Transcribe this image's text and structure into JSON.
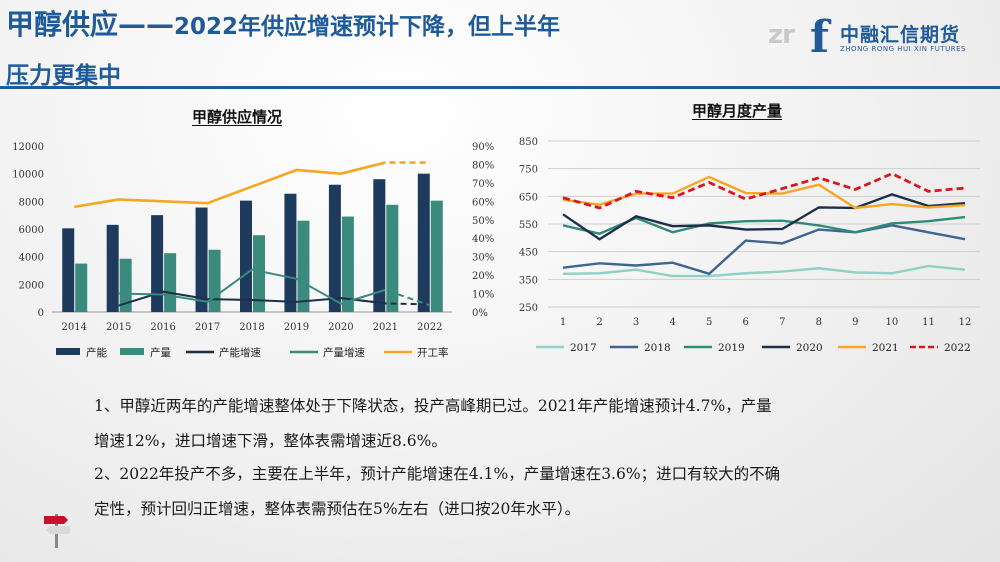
{
  "header": {
    "title_big": "甲醇供应——",
    "title_rest": "2022年供应增速预计下降，但上半年",
    "title_line2": "压力更集中"
  },
  "logo": {
    "mark": "zr",
    "mark_f": "f",
    "cn": "中融汇信期货",
    "en": "ZHONG RONG HUI XIN FUTURES"
  },
  "colors": {
    "title_blue": "#1f5a9a",
    "capacity": "#1e3a5c",
    "output": "#3a8a7e",
    "capacity_growth": "#1e2f4a",
    "output_growth": "#3a8a7e",
    "utilization": "#f5a623",
    "y2017": "#8fd1c4",
    "y2018": "#3d6590",
    "y2019": "#2f8a78",
    "y2020": "#1c2f4a",
    "y2021": "#f5a623",
    "y2022": "#d9171f"
  },
  "chart_data": [
    {
      "type": "bar",
      "title": "甲醇供应情况",
      "categories": [
        "2014",
        "2015",
        "2016",
        "2017",
        "2018",
        "2019",
        "2020",
        "2021",
        "2022"
      ],
      "ylim": [
        0,
        12000
      ],
      "yticks": [
        "0",
        "2000",
        "4000",
        "6000",
        "8000",
        "10000",
        "12000"
      ],
      "y2lim": [
        0,
        90
      ],
      "y2ticks": [
        "0%",
        "10%",
        "20%",
        "30%",
        "40%",
        "50%",
        "60%",
        "70%",
        "80%",
        "90%"
      ],
      "series": [
        {
          "name": "产能",
          "kind": "bar",
          "values": [
            6050,
            6300,
            7000,
            7550,
            8050,
            8550,
            9200,
            9600,
            10000
          ]
        },
        {
          "name": "产量",
          "kind": "bar",
          "values": [
            3500,
            3850,
            4250,
            4500,
            5550,
            6600,
            6900,
            7750,
            8050
          ]
        },
        {
          "name": "产能增速",
          "kind": "line",
          "axis": "right",
          "values": [
            null,
            3.5,
            11,
            7,
            6.5,
            5.5,
            7.5,
            4.7,
            4.1
          ],
          "dashed_from": 7
        },
        {
          "name": "产量增速",
          "kind": "line",
          "axis": "right",
          "values": [
            null,
            10,
            9.5,
            5.5,
            23,
            18,
            4.5,
            12,
            3.6
          ],
          "dashed_from": 7
        },
        {
          "name": "开工率",
          "kind": "line",
          "axis": "right",
          "values": [
            57,
            61,
            60,
            59,
            68,
            77,
            75,
            81,
            81
          ],
          "dashed_from": 7
        }
      ],
      "legend": "bottom"
    },
    {
      "type": "line",
      "title": "甲醇月度产量",
      "x": [
        "1",
        "2",
        "3",
        "4",
        "5",
        "6",
        "7",
        "8",
        "9",
        "10",
        "11",
        "12"
      ],
      "ylim": [
        250,
        850
      ],
      "yticks": [
        "250",
        "350",
        "450",
        "550",
        "650",
        "750",
        "850"
      ],
      "series": [
        {
          "name": "2017",
          "values": [
            370,
            372,
            385,
            362,
            362,
            372,
            378,
            390,
            375,
            372,
            398,
            385
          ]
        },
        {
          "name": "2018",
          "values": [
            392,
            408,
            400,
            410,
            370,
            490,
            480,
            530,
            520,
            545,
            520,
            495
          ]
        },
        {
          "name": "2019",
          "values": [
            545,
            515,
            572,
            520,
            552,
            560,
            562,
            545,
            520,
            552,
            560,
            575
          ]
        },
        {
          "name": "2020",
          "values": [
            585,
            495,
            578,
            542,
            545,
            530,
            532,
            610,
            608,
            657,
            615,
            625
          ]
        },
        {
          "name": "2021",
          "values": [
            638,
            620,
            660,
            660,
            720,
            662,
            660,
            692,
            608,
            622,
            610,
            618
          ]
        },
        {
          "name": "2022",
          "values": [
            645,
            608,
            668,
            645,
            700,
            640,
            678,
            717,
            675,
            732,
            668,
            680
          ]
        }
      ],
      "legend": "bottom"
    }
  ],
  "text": {
    "line1": "1、甲醇近两年的产能增速整体处于下降状态，投产高峰期已过。2021年产能增速预计4.7%，产量",
    "line2": "增速12%，进口增速下滑，整体表需增速近8.6%。",
    "line3": "2、2022年投产不多，主要在上半年，预计产能增速在4.1%，产量增速在3.6%；进口有较大的不确",
    "line4": "定性，预计回归正增速，整体表需预估在5%左右（进口按20年水平）。"
  }
}
